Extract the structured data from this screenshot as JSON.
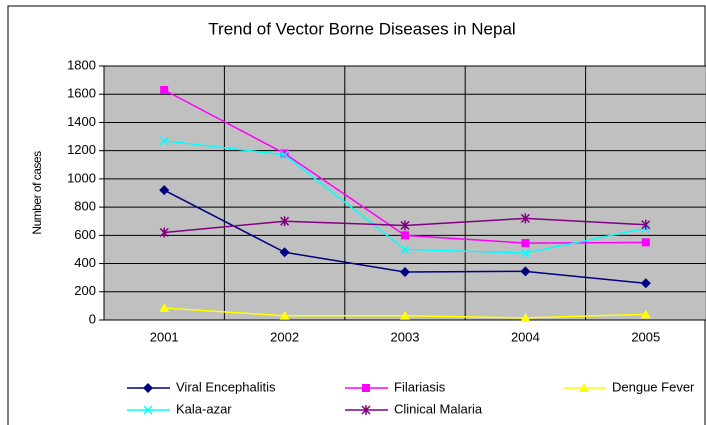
{
  "chart_data": {
    "type": "line",
    "title": "Trend of Vector Borne Diseases in Nepal",
    "y_label": "Number of cases",
    "categories": [
      "2001",
      "2002",
      "2003",
      "2004",
      "2005"
    ],
    "series": [
      {
        "name": "Viral Encephalitis",
        "color": "#000080",
        "marker": "diamond",
        "values": [
          920,
          480,
          340,
          345,
          260
        ]
      },
      {
        "name": "Filariasis",
        "color": "#ff00ff",
        "marker": "square",
        "values": [
          1630,
          1180,
          600,
          545,
          550
        ]
      },
      {
        "name": "Dengue Fever",
        "color": "#ffff00",
        "marker": "triangle",
        "values": [
          85,
          30,
          30,
          15,
          40
        ]
      },
      {
        "name": "Kala-azar",
        "color": "#00ffff",
        "marker": "x",
        "values": [
          1270,
          1170,
          500,
          475,
          650
        ]
      },
      {
        "name": "Clinical Malaria",
        "color": "#800080",
        "marker": "star",
        "values": [
          620,
          700,
          670,
          720,
          675
        ]
      }
    ],
    "ylim": [
      0,
      1800
    ],
    "yticks": [
      0,
      200,
      400,
      600,
      800,
      1000,
      1200,
      1400,
      1600,
      1800
    ],
    "grid": true,
    "legend": "bottom"
  }
}
